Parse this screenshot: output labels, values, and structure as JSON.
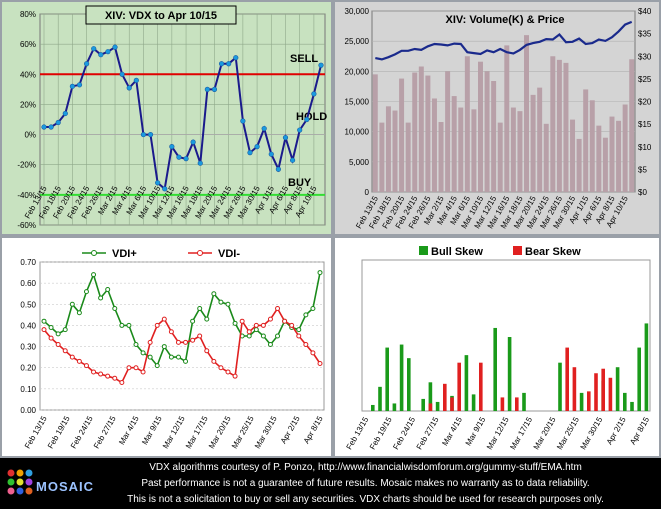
{
  "chart_data": [
    {
      "type": "line",
      "title": "XIV:   VDX to Apr 10/15",
      "y_ticks": [
        "80%",
        "60%",
        "40%",
        "20%",
        "0%",
        "-20%",
        "-40%",
        "-60%"
      ],
      "ylim": [
        -60,
        80
      ],
      "x_tick_labels": [
        "Feb 13/15",
        "Feb 18/15",
        "Feb 20/15",
        "Feb 24/15",
        "Feb 26/15",
        "Mar 2/15",
        "Mar 4/15",
        "Mar 6/15",
        "Mar 10/15",
        "Mar 12/15",
        "Mar 16/15",
        "Mar 18/15",
        "Mar 20/15",
        "Mar 24/15",
        "Mar 26/15",
        "Mar 30/15",
        "Apr 1/15",
        "Apr 6/15",
        "Apr 8/15",
        "Apr 10/15"
      ],
      "sell_level": 40,
      "buy_level": -40,
      "sell_label": "SELL",
      "buy_label": "BUY",
      "hold_label": "HOLD",
      "values": [
        5,
        5,
        8,
        14,
        32,
        33,
        47,
        57,
        53,
        55,
        58,
        40,
        31,
        36,
        0,
        0,
        -32,
        -36,
        -8,
        -15,
        -16,
        -5,
        -19,
        30,
        30,
        47,
        47,
        51,
        9,
        -12,
        -8,
        4,
        -13,
        -23,
        -2,
        -17,
        3,
        10,
        27,
        46
      ]
    },
    {
      "type": "bar+line",
      "title": "XIV: Volume(K) & Price",
      "y_left_ticks": [
        "30,000",
        "25,000",
        "20,000",
        "15,000",
        "10,000",
        "5,000",
        "0"
      ],
      "y_right_ticks": [
        "$40",
        "$35",
        "$30",
        "$25",
        "$20",
        "$15",
        "$10",
        "$5",
        "$0"
      ],
      "ylim_left": [
        0,
        30000
      ],
      "ylim_right": [
        0,
        40
      ],
      "x_tick_labels": [
        "Feb 13/15",
        "Feb 18/15",
        "Feb 20/15",
        "Feb 24/15",
        "Feb 26/15",
        "Mar 2/15",
        "Mar 4/15",
        "Mar 6/15",
        "Mar 10/15",
        "Mar 12/15",
        "Mar 16/15",
        "Mar 18/15",
        "Mar 20/15",
        "Mar 24/15",
        "Mar 26/15",
        "Mar 30/15",
        "Apr 1/15",
        "Apr 6/15",
        "Apr 8/15",
        "Apr 10/15"
      ],
      "volume": [
        19500,
        11500,
        14200,
        13500,
        18800,
        11500,
        19800,
        20800,
        19300,
        15500,
        11600,
        20000,
        15900,
        14000,
        22500,
        13700,
        21600,
        20000,
        18400,
        11500,
        24300,
        14000,
        13400,
        26000,
        16100,
        17300,
        11300,
        22500,
        21900,
        21400,
        12000,
        8800,
        17000,
        15200,
        11000,
        9000,
        12500,
        11800,
        14500,
        22000
      ],
      "price": [
        29.6,
        29.3,
        29.8,
        30.4,
        31.2,
        31.2,
        31.6,
        31.4,
        32.2,
        32.7,
        32.6,
        32.4,
        32.8,
        32.7,
        30.9,
        30.7,
        30.5,
        31.3,
        30.9,
        31.6,
        30.9,
        30.6,
        31.4,
        32.5,
        32.9,
        33.2,
        33.8,
        33.7,
        34.8,
        33.1,
        33.2,
        33.9,
        32.7,
        32.9,
        33.7,
        33.4,
        34.2,
        35.5,
        37.0,
        37.6
      ]
    },
    {
      "type": "line",
      "legend": [
        "VDI+",
        "VDI-"
      ],
      "y_ticks": [
        "0.70",
        "0.60",
        "0.50",
        "0.40",
        "0.30",
        "0.20",
        "0.10",
        "0.00"
      ],
      "ylim": [
        0,
        0.7
      ],
      "x_tick_labels": [
        "Feb 13/15",
        "Feb 19/15",
        "Feb 24/15",
        "Feb 27/15",
        "Mar 4/15",
        "Mar 9/15",
        "Mar 12/15",
        "Mar 17/15",
        "Mar 20/15",
        "Mar 25/15",
        "Mar 30/15",
        "Apr 2/15",
        "Apr 8/15"
      ],
      "series": [
        {
          "name": "VDI+",
          "values": [
            0.42,
            0.39,
            0.36,
            0.38,
            0.5,
            0.46,
            0.56,
            0.64,
            0.53,
            0.57,
            0.48,
            0.4,
            0.4,
            0.31,
            0.27,
            0.25,
            0.21,
            0.3,
            0.25,
            0.25,
            0.23,
            0.42,
            0.48,
            0.43,
            0.55,
            0.51,
            0.5,
            0.41,
            0.35,
            0.35,
            0.38,
            0.35,
            0.31,
            0.35,
            0.42,
            0.39,
            0.38,
            0.45,
            0.48,
            0.65
          ]
        },
        {
          "name": "VDI-",
          "values": [
            0.38,
            0.34,
            0.31,
            0.28,
            0.25,
            0.23,
            0.21,
            0.18,
            0.17,
            0.16,
            0.15,
            0.13,
            0.2,
            0.2,
            0.18,
            0.32,
            0.4,
            0.43,
            0.37,
            0.32,
            0.32,
            0.33,
            0.35,
            0.28,
            0.23,
            0.2,
            0.18,
            0.16,
            0.42,
            0.37,
            0.4,
            0.4,
            0.43,
            0.48,
            0.42,
            0.4,
            0.35,
            0.31,
            0.27,
            0.22
          ]
        }
      ]
    },
    {
      "type": "bar",
      "legend": [
        "Bull Skew",
        "Bear Skew"
      ],
      "x_tick_labels": [
        "Feb 13/15",
        "Feb 19/15",
        "Feb 24/15",
        "Feb 27/15",
        "Mar 4/15",
        "Mar 9/15",
        "Mar 12/15",
        "Mar 17/15",
        "Mar 20/15",
        "Mar 25/15",
        "Mar 30/15",
        "Apr 2/15",
        "Apr 8/15"
      ],
      "ylim": [
        0,
        1
      ],
      "series": [
        {
          "name": "Bull Skew",
          "values": [
            0,
            0.04,
            0.16,
            0.42,
            0.05,
            0.44,
            0.35,
            0,
            0.08,
            0.19,
            0.06,
            0,
            0.1,
            0,
            0.37,
            0.11,
            0,
            0,
            0.55,
            0,
            0.49,
            0,
            0.12,
            0,
            0,
            0,
            0,
            0.32,
            0,
            0,
            0.12,
            0,
            0,
            0.2,
            0,
            0.29,
            0.12,
            0.06,
            0.42,
            0.58
          ]
        },
        {
          "name": "Bear Skew",
          "values": [
            0,
            0,
            0,
            0,
            0,
            0,
            0,
            0,
            0,
            0.05,
            0,
            0.18,
            0.09,
            0.32,
            0,
            0,
            0.32,
            0,
            0,
            0.09,
            0,
            0.09,
            0,
            0,
            0,
            0,
            0,
            0,
            0.42,
            0.29,
            0,
            0.13,
            0.25,
            0.28,
            0.22,
            0,
            0,
            0,
            0,
            0
          ]
        }
      ]
    }
  ],
  "footer": {
    "line1": "VDX algorithms courtesy of P. Ponzo, http://www.financialwisdomforum.org/gummy-stuff/EMA.htm",
    "line2": "Past performance is not a guarantee of future results.     Mosaic makes no warranty as to data reliability.",
    "line3": "This is not a solicitation to buy or sell any securities.  VDX charts should be used for research purposes only.",
    "logo": "MOSAIC"
  },
  "colors": {
    "vdx_line": "#1a1a8c",
    "sell_line": "#e00000",
    "buy_line": "#33dd33",
    "volume_bar": "#b8a0a8",
    "price_line": "#1a2a8c",
    "vdi_plus": "#1a8a1a",
    "vdi_minus": "#e02020",
    "bull": "#1a9a1a",
    "bear": "#e02020"
  }
}
